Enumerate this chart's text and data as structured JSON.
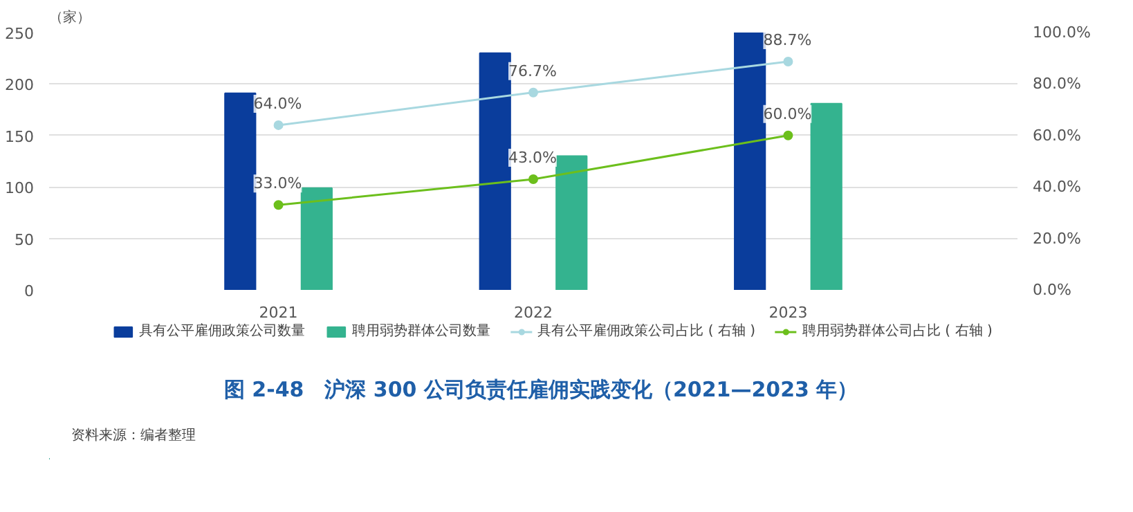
{
  "chart_data": {
    "type": "bar",
    "title": "图 2-48　沪深 300 公司负责任雇佣实践变化（2021—2023 年）",
    "ylabel": "（家）",
    "annotations": [
      "资料来源：编者整理"
    ],
    "categories": [
      "2021",
      "2022",
      "2023"
    ],
    "series": [
      {
        "name": "具有公平雇佣政策公司数量",
        "color": "#0a3d9c",
        "values": [
          191,
          230,
          250
        ]
      },
      {
        "name": "聘用弱势群体公司数量",
        "color": "#34b38f",
        "values": [
          99,
          130,
          181
        ]
      },
      {
        "name": "具有公平雇佣政策公司占比 ( 右轴 )",
        "type": "line",
        "axis": "y2",
        "color": "#a8d8e0",
        "values": [
          64.0,
          76.7,
          88.7
        ],
        "value_labels": [
          "64.0%",
          "76.7%",
          "88.7%"
        ]
      },
      {
        "name": "聘用弱势群体公司占比 ( 右轴 )",
        "type": "line",
        "axis": "y2",
        "color": "#6cbf1c",
        "values": [
          33.0,
          43.0,
          60.0
        ],
        "value_labels": [
          "33.0%",
          "43.0%",
          "60.0%"
        ]
      }
    ],
    "ylim": [
      0,
      250
    ],
    "yticks": [
      0,
      50,
      100,
      150,
      200,
      250
    ],
    "y2lim": [
      0,
      100
    ],
    "y2ticks": [
      {
        "value": 0,
        "label": "0.0%"
      },
      {
        "value": 20,
        "label": "20.0%"
      },
      {
        "value": 40,
        "label": "40.0%"
      },
      {
        "value": 60,
        "label": "60.0%"
      },
      {
        "value": 80,
        "label": "80.0%"
      },
      {
        "value": 100,
        "label": "100.0%"
      }
    ],
    "grid": "y",
    "legend": "bottom",
    "marker": "circle",
    "line_style": "solid"
  }
}
